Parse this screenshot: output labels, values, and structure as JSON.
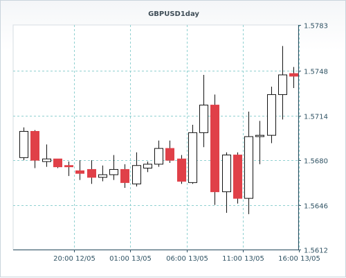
{
  "chart_data": {
    "type": "candlestick",
    "title": "GBPUSD1day",
    "xlabel": "",
    "ylabel": "",
    "ylim": [
      1.5612,
      1.5783
    ],
    "y_ticks": [
      "1.5783",
      "1.5748",
      "1.5714",
      "1.5680",
      "1.5646",
      "1.5612"
    ],
    "x_ticks": [
      {
        "label": "20:00 12/05",
        "index": 4.5
      },
      {
        "label": "01:00 13/05",
        "index": 9.5
      },
      {
        "label": "06:00 13/05",
        "index": 14.5
      },
      {
        "label": "11:00 13/05",
        "index": 19.5
      },
      {
        "label": "16:00 13/05",
        "index": 24.5
      }
    ],
    "grid": true,
    "colors": {
      "up": "#ffffff",
      "down": "#e04048",
      "outline": "#111111",
      "grid": "#8fd0d0",
      "axis": "#2f5263"
    },
    "candles": [
      {
        "open": 1.5682,
        "high": 1.5705,
        "low": 1.568,
        "close": 1.5702
      },
      {
        "open": 1.5702,
        "high": 1.5703,
        "low": 1.5674,
        "close": 1.568
      },
      {
        "open": 1.5679,
        "high": 1.5692,
        "low": 1.5675,
        "close": 1.5681
      },
      {
        "open": 1.5681,
        "high": 1.5681,
        "low": 1.5674,
        "close": 1.5675
      },
      {
        "open": 1.5676,
        "high": 1.5679,
        "low": 1.5668,
        "close": 1.5675
      },
      {
        "open": 1.5672,
        "high": 1.568,
        "low": 1.5665,
        "close": 1.567
      },
      {
        "open": 1.5673,
        "high": 1.568,
        "low": 1.5662,
        "close": 1.5667
      },
      {
        "open": 1.5667,
        "high": 1.5676,
        "low": 1.5664,
        "close": 1.5669
      },
      {
        "open": 1.5669,
        "high": 1.5684,
        "low": 1.5665,
        "close": 1.5673
      },
      {
        "open": 1.5673,
        "high": 1.5677,
        "low": 1.5659,
        "close": 1.5663
      },
      {
        "open": 1.5662,
        "high": 1.5686,
        "low": 1.566,
        "close": 1.5676
      },
      {
        "open": 1.5674,
        "high": 1.5679,
        "low": 1.5671,
        "close": 1.5677
      },
      {
        "open": 1.5677,
        "high": 1.5695,
        "low": 1.5675,
        "close": 1.5689
      },
      {
        "open": 1.5689,
        "high": 1.5695,
        "low": 1.5678,
        "close": 1.568
      },
      {
        "open": 1.5681,
        "high": 1.5684,
        "low": 1.5662,
        "close": 1.5664
      },
      {
        "open": 1.5663,
        "high": 1.5707,
        "low": 1.5662,
        "close": 1.5701
      },
      {
        "open": 1.5701,
        "high": 1.5745,
        "low": 1.569,
        "close": 1.5722
      },
      {
        "open": 1.5722,
        "high": 1.573,
        "low": 1.5646,
        "close": 1.5656
      },
      {
        "open": 1.5656,
        "high": 1.5686,
        "low": 1.564,
        "close": 1.5684
      },
      {
        "open": 1.5684,
        "high": 1.5686,
        "low": 1.5647,
        "close": 1.5651
      },
      {
        "open": 1.5651,
        "high": 1.5717,
        "low": 1.5639,
        "close": 1.5698
      },
      {
        "open": 1.5698,
        "high": 1.571,
        "low": 1.5677,
        "close": 1.5699
      },
      {
        "open": 1.5699,
        "high": 1.5736,
        "low": 1.5693,
        "close": 1.573
      },
      {
        "open": 1.573,
        "high": 1.5767,
        "low": 1.5711,
        "close": 1.5745
      },
      {
        "open": 1.5746,
        "high": 1.5751,
        "low": 1.5735,
        "close": 1.5744
      }
    ]
  }
}
